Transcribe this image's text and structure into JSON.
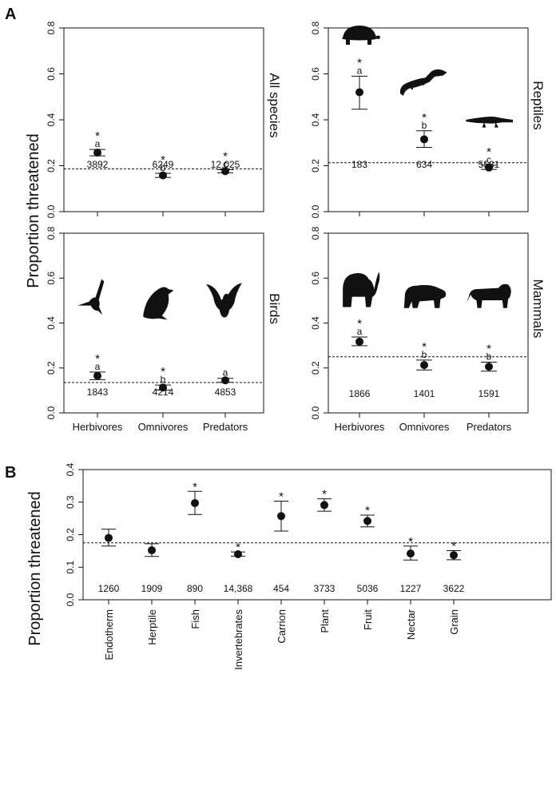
{
  "colors": {
    "ink": "#111111",
    "background": "#ffffff"
  },
  "figure": {
    "panel_a_letter": "A",
    "panel_b_letter": "B",
    "panel_a_ylabel": "Proportion threatened",
    "panel_b_ylabel": "Proportion threatened"
  },
  "chart_data": [
    {
      "type": "scatter",
      "subtitle": "All species",
      "categories": [
        "Herbivores",
        "Omnivores",
        "Predators"
      ],
      "values": [
        0.257,
        0.158,
        0.176
      ],
      "ci_low": [
        0.243,
        0.149,
        0.169
      ],
      "ci_high": [
        0.271,
        0.167,
        0.183
      ],
      "sig": [
        true,
        true,
        true
      ],
      "letters": [
        "a",
        "b",
        "c"
      ],
      "n_labels": [
        "3892",
        "6249",
        "12,025"
      ],
      "baseline": 0.186,
      "ylim": [
        0,
        0.8
      ],
      "yticks": [
        0,
        0.2,
        0.4,
        0.6,
        0.8
      ],
      "ytick_labels": [
        "0.0",
        "0.2",
        "0.4",
        "0.6",
        "0.8"
      ],
      "xtick_labels_shown": false,
      "icons": []
    },
    {
      "type": "scatter",
      "subtitle": "Reptiles",
      "categories": [
        "Herbivores",
        "Omnivores",
        "Predators"
      ],
      "values": [
        0.52,
        0.315,
        0.192
      ],
      "ci_low": [
        0.446,
        0.28,
        0.184
      ],
      "ci_high": [
        0.59,
        0.352,
        0.202
      ],
      "sig": [
        true,
        true,
        true
      ],
      "letters": [
        "a",
        "b",
        "c"
      ],
      "n_labels": [
        "183",
        "634",
        "5581"
      ],
      "baseline": 0.213,
      "ylim": [
        0,
        0.8
      ],
      "yticks": [
        0,
        0.2,
        0.4,
        0.6,
        0.8
      ],
      "ytick_labels": [
        "0.0",
        "0.2",
        "0.4",
        "0.6",
        "0.8"
      ],
      "xtick_labels_shown": false,
      "icons": [
        "tortoise-icon",
        "iguana-icon",
        "crocodile-icon"
      ]
    },
    {
      "type": "scatter",
      "subtitle": "Birds",
      "categories": [
        "Herbivores",
        "Omnivores",
        "Predators"
      ],
      "values": [
        0.165,
        0.113,
        0.145
      ],
      "ci_low": [
        0.148,
        0.102,
        0.136
      ],
      "ci_high": [
        0.182,
        0.124,
        0.154
      ],
      "sig": [
        true,
        true,
        false
      ],
      "letters": [
        "a",
        "b",
        "a"
      ],
      "n_labels": [
        "1843",
        "4214",
        "4853"
      ],
      "baseline": 0.135,
      "ylim": [
        0,
        0.8
      ],
      "yticks": [
        0,
        0.2,
        0.4,
        0.6,
        0.8
      ],
      "ytick_labels": [
        "0.0",
        "0.2",
        "0.4",
        "0.6",
        "0.8"
      ],
      "xtick_labels_shown": true,
      "icons": [
        "hummingbird-icon",
        "crow-icon",
        "eagle-icon"
      ]
    },
    {
      "type": "scatter",
      "subtitle": "Mammals",
      "categories": [
        "Herbivores",
        "Omnivores",
        "Predators"
      ],
      "values": [
        0.317,
        0.213,
        0.206
      ],
      "ci_low": [
        0.299,
        0.191,
        0.186
      ],
      "ci_high": [
        0.338,
        0.235,
        0.226
      ],
      "sig": [
        true,
        true,
        true
      ],
      "letters": [
        "a",
        "b",
        "b"
      ],
      "n_labels": [
        "1866",
        "1401",
        "1591"
      ],
      "baseline": 0.25,
      "ylim": [
        0,
        0.8
      ],
      "yticks": [
        0,
        0.2,
        0.4,
        0.6,
        0.8
      ],
      "ytick_labels": [
        "0.0",
        "0.2",
        "0.4",
        "0.6",
        "0.8"
      ],
      "xtick_labels_shown": true,
      "icons": [
        "elephant-icon",
        "bear-icon",
        "lion-icon"
      ]
    },
    {
      "type": "scatter",
      "subtitle": "",
      "categories": [
        "Endotherm",
        "Herptile",
        "Fish",
        "Invertebrates",
        "Carrion",
        "Plant",
        "Fruit",
        "Nectar",
        "Grain"
      ],
      "values": [
        0.19,
        0.152,
        0.297,
        0.14,
        0.257,
        0.291,
        0.242,
        0.142,
        0.137
      ],
      "ci_low": [
        0.165,
        0.133,
        0.262,
        0.134,
        0.211,
        0.272,
        0.224,
        0.122,
        0.123
      ],
      "ci_high": [
        0.217,
        0.172,
        0.333,
        0.147,
        0.303,
        0.31,
        0.26,
        0.165,
        0.151
      ],
      "sig": [
        false,
        false,
        true,
        true,
        true,
        true,
        true,
        true,
        true
      ],
      "n_labels": [
        "1260",
        "1909",
        "890",
        "14,368",
        "454",
        "3733",
        "5036",
        "1227",
        "3622"
      ],
      "baseline": 0.175,
      "ylim": [
        0,
        0.4
      ],
      "yticks": [
        0,
        0.1,
        0.2,
        0.3,
        0.4
      ],
      "ytick_labels": [
        "0.0",
        "0.1",
        "0.2",
        "0.3",
        "0.4"
      ]
    }
  ]
}
